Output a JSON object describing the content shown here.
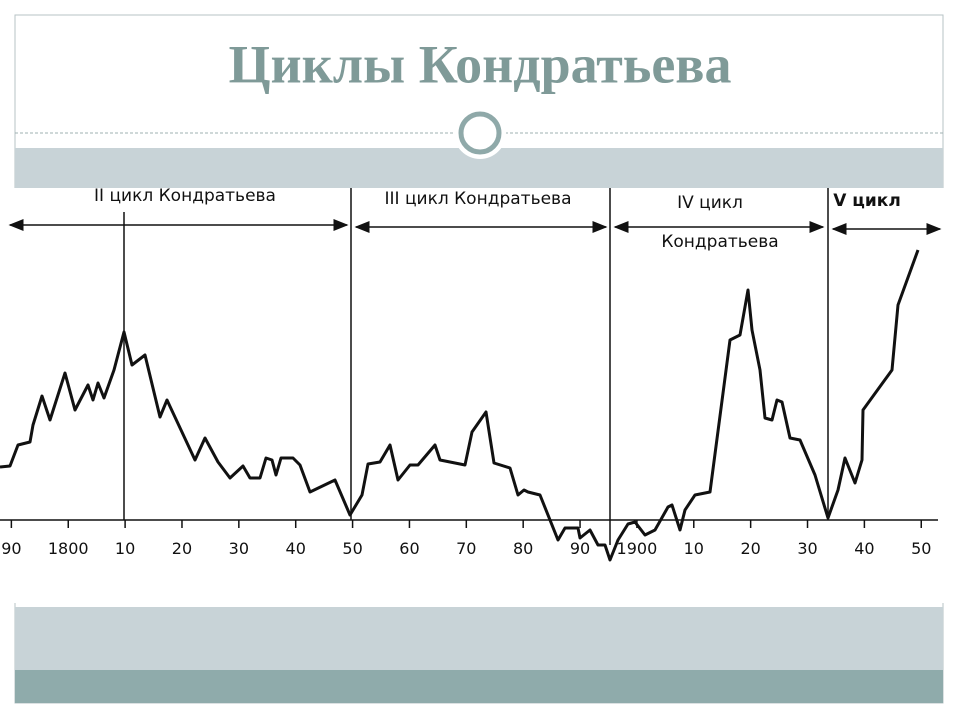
{
  "chart_data": {
    "type": "line",
    "title": "Циклы Кондратьева",
    "xlim": [
      1788,
      1954
    ],
    "xticks": [
      {
        "value": 1790,
        "label": "90"
      },
      1800,
      {
        "value": 1810,
        "label": "10"
      },
      {
        "value": 1820,
        "label": "20"
      },
      {
        "value": 1830,
        "label": "30"
      },
      {
        "value": 1840,
        "label": "40"
      },
      {
        "value": 1850,
        "label": "50"
      },
      {
        "value": 1860,
        "label": "60"
      },
      {
        "value": 1870,
        "label": "70"
      },
      {
        "value": 1880,
        "label": "80"
      },
      {
        "value": 1890,
        "label": "90"
      },
      1900,
      {
        "value": 1910,
        "label": "10"
      },
      {
        "value": 1920,
        "label": "20"
      },
      {
        "value": 1930,
        "label": "30"
      },
      {
        "value": 1940,
        "label": "40"
      },
      {
        "value": 1950,
        "label": "50"
      }
    ],
    "annotations": [
      "II цикл Кондратьева",
      "III цикл Кондратьева",
      [
        "IV цикл",
        "Кондратьева"
      ],
      "V цикл"
    ]
  }
}
